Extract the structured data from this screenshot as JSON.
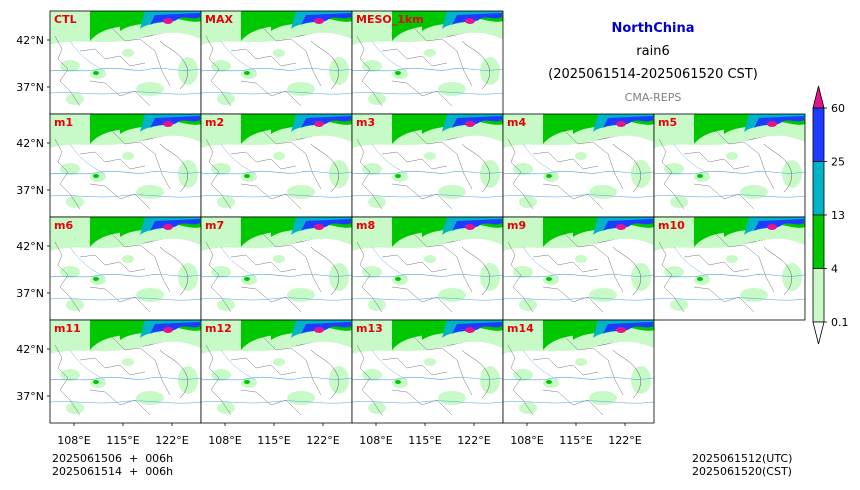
{
  "header": {
    "region": "NorthChina",
    "product": "rain6",
    "period": "(2025061514-2025061520 CST)",
    "model": "CMA-REPS"
  },
  "colors": {
    "region_title": "#0000cc",
    "panel_label": "#e8000b",
    "model_label": "#808080",
    "rain_levels": [
      "#c8fac8",
      "#00c800",
      "#00b4c8",
      "#1e3cff",
      "#e6148c"
    ]
  },
  "panels": [
    {
      "label": "CTL",
      "row": 0,
      "col": 0
    },
    {
      "label": "MAX",
      "row": 0,
      "col": 1
    },
    {
      "label": "MESO_1km",
      "row": 0,
      "col": 2
    },
    {
      "label": "m1",
      "row": 1,
      "col": 0
    },
    {
      "label": "m2",
      "row": 1,
      "col": 1
    },
    {
      "label": "m3",
      "row": 1,
      "col": 2
    },
    {
      "label": "m4",
      "row": 1,
      "col": 3
    },
    {
      "label": "m5",
      "row": 1,
      "col": 4
    },
    {
      "label": "m6",
      "row": 2,
      "col": 0
    },
    {
      "label": "m7",
      "row": 2,
      "col": 1
    },
    {
      "label": "m8",
      "row": 2,
      "col": 2
    },
    {
      "label": "m9",
      "row": 2,
      "col": 3
    },
    {
      "label": "m10",
      "row": 2,
      "col": 4
    },
    {
      "label": "m11",
      "row": 3,
      "col": 0
    },
    {
      "label": "m12",
      "row": 3,
      "col": 1
    },
    {
      "label": "m13",
      "row": 3,
      "col": 2
    },
    {
      "label": "m14",
      "row": 3,
      "col": 3
    }
  ],
  "lat_ticks": [
    "42°N",
    "37°N"
  ],
  "lon_ticks": [
    "108°E",
    "115°E",
    "122°E"
  ],
  "colorbar": {
    "levels": [
      "0.1",
      "4",
      "13",
      "25",
      "60"
    ],
    "extend": "both"
  },
  "footer": {
    "left_line1": "2025061506  +  006h",
    "left_line2": "2025061514  +  006h",
    "right_line1": "2025061512(UTC)",
    "right_line2": "2025061520(CST)"
  }
}
